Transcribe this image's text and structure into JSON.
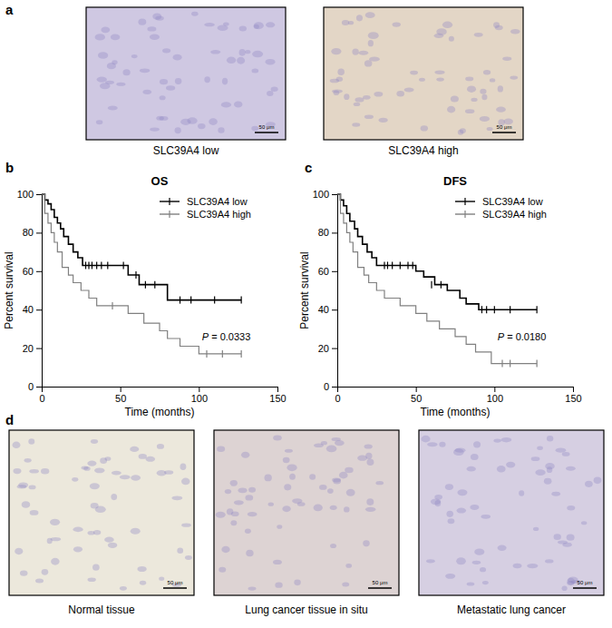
{
  "panel_labels": [
    "a",
    "b",
    "c",
    "d"
  ],
  "images_a": [
    {
      "caption": "SLC39A4 low",
      "scale_bar": "50 μm"
    },
    {
      "caption": "SLC39A4 high",
      "scale_bar": "50 μm"
    }
  ],
  "images_d": [
    {
      "caption": "Normal tissue",
      "scale_bar": "50 μm"
    },
    {
      "caption": "Lung cancer tissue in situ",
      "scale_bar": "50 μm"
    },
    {
      "caption": "Metastatic lung cancer",
      "scale_bar": "50 μm"
    }
  ],
  "chart_data": [
    {
      "type": "line",
      "title": "OS",
      "x_label": "Time (months)",
      "y_label": "Percent survival",
      "xlim": [
        0,
        150
      ],
      "xticks": [
        0,
        50,
        100,
        150
      ],
      "ylim": [
        0,
        100
      ],
      "yticks": [
        0,
        20,
        40,
        60,
        80,
        100
      ],
      "legend": "top-right",
      "line_style": "step",
      "marker": "tick",
      "annotation": "P = 0.0333",
      "series": [
        {
          "name": "SLC39A4 low",
          "color": "#000000",
          "x": [
            0,
            2,
            4,
            6,
            8,
            10,
            12,
            14,
            17,
            20,
            23,
            26,
            55,
            62,
            80,
            127
          ],
          "values": [
            100,
            97,
            95,
            92,
            88,
            85,
            82,
            78,
            74,
            70,
            67,
            63,
            58,
            53,
            45,
            45
          ],
          "censored_x": [
            28,
            30,
            32,
            35,
            38,
            42,
            52,
            60,
            66,
            72,
            88,
            95,
            110,
            127
          ],
          "censored_y": [
            63,
            63,
            63,
            63,
            63,
            63,
            63,
            58,
            53,
            53,
            45,
            45,
            45,
            45
          ]
        },
        {
          "name": "SLC39A4 high",
          "color": "#808080",
          "x": [
            0,
            2,
            4,
            6,
            8,
            10,
            13,
            17,
            20,
            25,
            30,
            35,
            55,
            65,
            75,
            80,
            88,
            100,
            127
          ],
          "values": [
            100,
            90,
            85,
            80,
            75,
            70,
            62,
            58,
            54,
            50,
            46,
            42,
            38,
            33,
            29,
            25,
            21,
            17,
            17
          ],
          "censored_x": [
            45,
            105,
            115,
            127
          ],
          "censored_y": [
            42,
            17,
            17,
            17
          ]
        }
      ]
    },
    {
      "type": "line",
      "title": "DFS",
      "x_label": "Time (months)",
      "y_label": "Percent survival",
      "xlim": [
        0,
        150
      ],
      "xticks": [
        0,
        50,
        100,
        150
      ],
      "ylim": [
        0,
        100
      ],
      "yticks": [
        0,
        20,
        40,
        60,
        80,
        100
      ],
      "legend": "top-right",
      "line_style": "step",
      "marker": "tick",
      "annotation": "P = 0.0180",
      "series": [
        {
          "name": "SLC39A4 low",
          "color": "#000000",
          "x": [
            0,
            2,
            4,
            6,
            8,
            11,
            13,
            16,
            19,
            22,
            25,
            50,
            55,
            62,
            70,
            78,
            82,
            90,
            127
          ],
          "values": [
            100,
            97,
            94,
            90,
            86,
            82,
            78,
            74,
            70,
            67,
            63,
            60,
            57,
            53,
            50,
            46,
            43,
            40,
            40
          ],
          "censored_x": [
            30,
            32,
            35,
            40,
            45,
            48,
            60,
            66,
            92,
            95,
            100,
            110,
            127
          ],
          "censored_y": [
            63,
            63,
            63,
            63,
            63,
            63,
            53,
            53,
            40,
            40,
            40,
            40,
            40
          ]
        },
        {
          "name": "SLC39A4 high",
          "color": "#808080",
          "x": [
            0,
            2,
            4,
            6,
            8,
            10,
            13,
            17,
            20,
            25,
            30,
            40,
            50,
            57,
            65,
            75,
            82,
            88,
            98,
            127
          ],
          "values": [
            100,
            90,
            85,
            80,
            75,
            70,
            62,
            58,
            54,
            50,
            46,
            42,
            38,
            34,
            30,
            26,
            22,
            18,
            12,
            12
          ],
          "censored_x": [
            105,
            110,
            127
          ],
          "censored_y": [
            12,
            12,
            12
          ]
        }
      ]
    }
  ]
}
